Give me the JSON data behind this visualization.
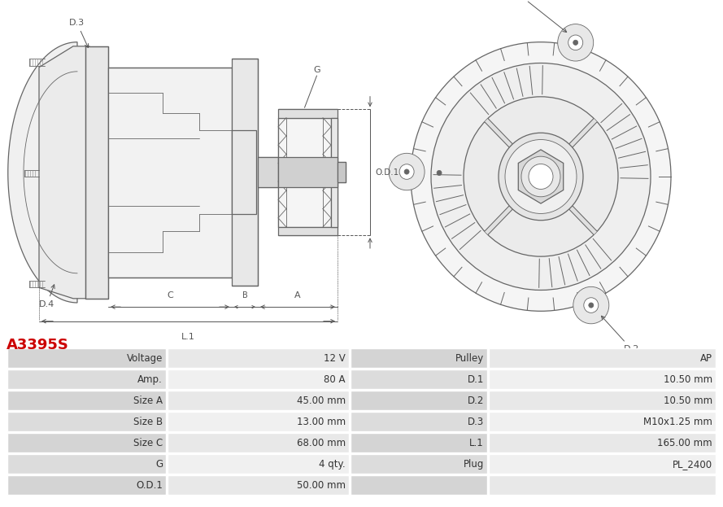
{
  "title": "A3395S",
  "title_color": "#cc0000",
  "bg_color": "#ffffff",
  "table_border_color": "#ffffff",
  "table_data": [
    [
      "Voltage",
      "12 V",
      "Pulley",
      "AP"
    ],
    [
      "Amp.",
      "80 A",
      "D.1",
      "10.50 mm"
    ],
    [
      "Size A",
      "45.00 mm",
      "D.2",
      "10.50 mm"
    ],
    [
      "Size B",
      "13.00 mm",
      "D.3",
      "M10x1.25 mm"
    ],
    [
      "Size C",
      "68.00 mm",
      "L.1",
      "165.00 mm"
    ],
    [
      "G",
      "4 qty.",
      "Plug",
      "PL_2400"
    ],
    [
      "O.D.1",
      "50.00 mm",
      "",
      ""
    ]
  ],
  "lc": "#666666",
  "dc": "#444444",
  "dim_lc": "#555555"
}
